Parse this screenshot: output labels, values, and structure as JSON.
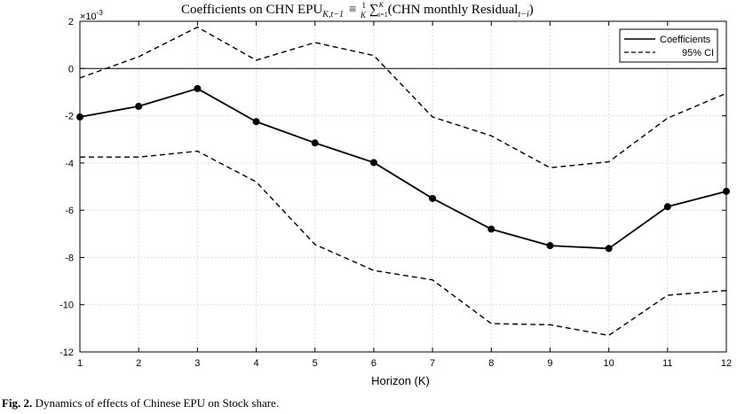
{
  "chart_data": {
    "type": "line",
    "title": "Coefficients on CHN EPU",
    "title_subscript_1": "K,t−1",
    "title_eq": "≡",
    "title_frac_num": "1",
    "title_frac_den": "K",
    "title_sum": "∑",
    "title_sum_top": "K",
    "title_sum_bottom": "i=1",
    "title_paren": "(CHN monthly Residual",
    "title_subscript_2": "t−i",
    "title_close": ")",
    "xlabel": "Horizon (K)",
    "ylabel": "",
    "y_multiplier": "×10",
    "y_multiplier_exp": "-3",
    "x": [
      1,
      2,
      3,
      4,
      5,
      6,
      7,
      8,
      9,
      10,
      11,
      12
    ],
    "xlim": [
      1,
      12
    ],
    "ylim": [
      -12,
      2
    ],
    "y_ticks": [
      2,
      0,
      -2,
      -4,
      -6,
      -8,
      -10,
      -12
    ],
    "grid": true,
    "zero_line": true,
    "legend_position": "top-right",
    "series": [
      {
        "name": "Coefficients",
        "style": "solid",
        "markers": true,
        "values": [
          -2.05,
          -1.6,
          -0.85,
          -2.25,
          -3.15,
          -3.98,
          -5.5,
          -6.8,
          -7.5,
          -7.62,
          -5.85,
          -5.2
        ]
      },
      {
        "name": "95% CI",
        "style": "dashed",
        "markers": false,
        "values": [
          -0.4,
          0.5,
          1.75,
          0.35,
          1.1,
          0.55,
          -2.05,
          -2.85,
          -4.2,
          -3.95,
          -2.1,
          -1.05
        ]
      },
      {
        "name": "",
        "style": "dashed",
        "markers": false,
        "values": [
          -3.75,
          -3.75,
          -3.5,
          -4.8,
          -7.45,
          -8.55,
          -8.95,
          -10.8,
          -10.85,
          -11.3,
          -9.6,
          -9.4
        ]
      }
    ]
  },
  "caption": {
    "figure": "Fig. 2.",
    "text": " Dynamics of effects of Chinese EPU on Stock share."
  }
}
